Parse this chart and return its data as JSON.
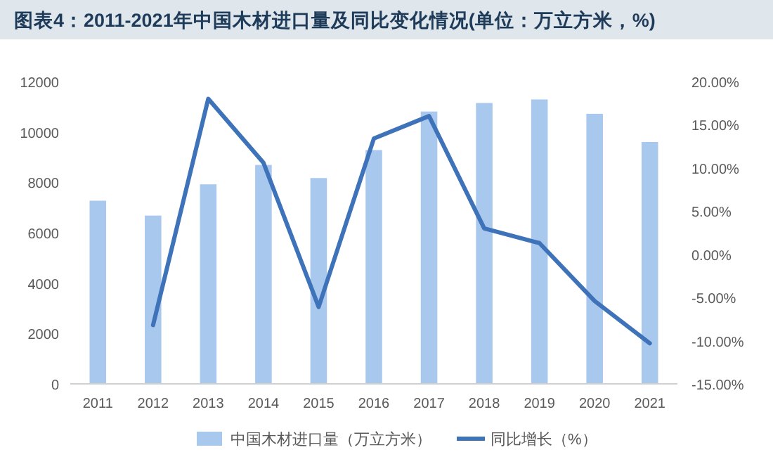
{
  "chart_data": {
    "type": "bar",
    "title": "图表4：2011-2021年中国木材进口量及同比变化情况(单位：万立方米，%)",
    "categories": [
      "2011",
      "2012",
      "2013",
      "2014",
      "2015",
      "2016",
      "2017",
      "2018",
      "2019",
      "2020",
      "2021"
    ],
    "series": [
      {
        "name": "中国木材进口量（万立方米）",
        "color": "#a9c8ee",
        "values": [
          7270,
          6680,
          7920,
          8690,
          8170,
          9280,
          10810,
          11150,
          11290,
          10720,
          9600
        ]
      },
      {
        "name": "同比增长（%）",
        "type": "line",
        "axis": "y2",
        "color": "#3e73b9",
        "values": [
          null,
          -8.2,
          18.0,
          10.6,
          -6.1,
          13.4,
          16.0,
          3.0,
          1.3,
          -5.4,
          -10.3
        ]
      }
    ],
    "ylim": [
      0,
      12000
    ],
    "yticks": [
      0,
      2000,
      4000,
      6000,
      8000,
      10000,
      12000
    ],
    "y2lim": [
      -15,
      20
    ],
    "y2ticks": [
      {
        "value": -15,
        "label": "-15.00%"
      },
      {
        "value": -10,
        "label": "-10.00%"
      },
      {
        "value": -5,
        "label": "-5.00%"
      },
      {
        "value": 0,
        "label": "0.00%"
      },
      {
        "value": 5,
        "label": "5.00%"
      },
      {
        "value": 10,
        "label": "10.00%"
      },
      {
        "value": 15,
        "label": "15.00%"
      },
      {
        "value": 20,
        "label": "20.00%"
      }
    ],
    "legend": "bottom",
    "marker": "none",
    "line_style": "solid"
  }
}
